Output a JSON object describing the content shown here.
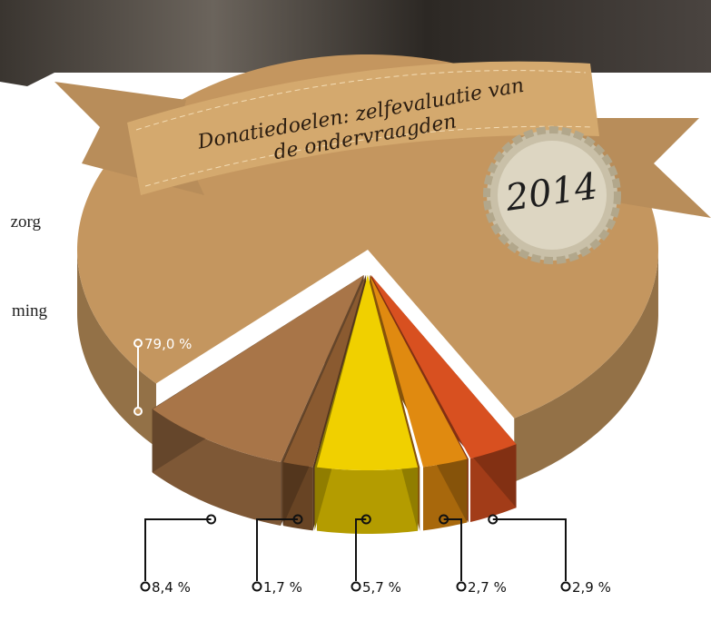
{
  "chart_data": {
    "type": "pie3d",
    "title": "Donatiedoelen: zelfevaluatie van de ondervraagden",
    "badge": "2014",
    "side_labels": [
      "zorg",
      "ming"
    ],
    "values": [
      79.0,
      8.4,
      1.7,
      5.7,
      2.7,
      2.9
    ],
    "value_labels": [
      "79,0 %",
      "8,4 %",
      "1,7 %",
      "5,7 %",
      "2,7 %",
      "2,9 %"
    ],
    "colors": [
      "#c4965f",
      "#a87548",
      "#8a5a30",
      "#f0d000",
      "#e08a10",
      "#d85020"
    ]
  }
}
